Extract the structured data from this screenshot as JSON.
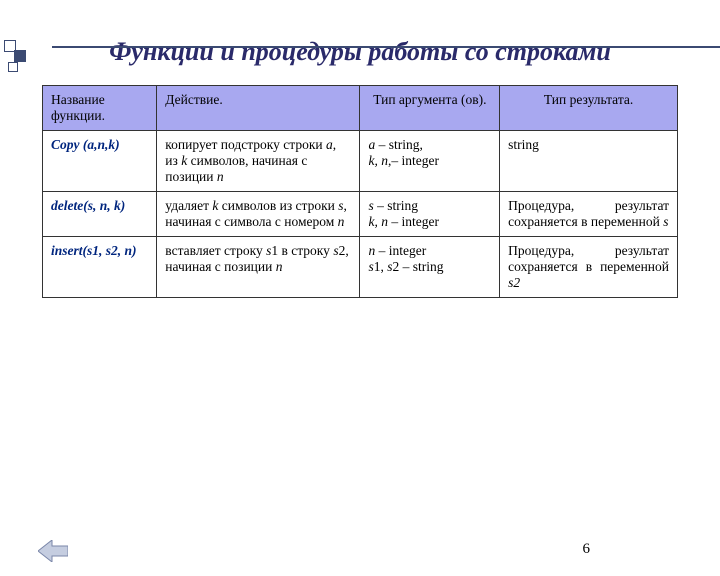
{
  "accent_color": "#3b4a72",
  "title_color": "#2a2a6a",
  "header_bg": "#a8a8f0",
  "func_color": "#00257e",
  "title": "Функции и процедуры работы со строками",
  "table": {
    "headers": {
      "name": "Название функции.",
      "action": "Действие.",
      "args": "Тип аргумента (ов).",
      "result": "Тип результата."
    },
    "rows": [
      {
        "name_html": "Copy (a,n,k)",
        "action_html": "копирует подстроку строки <span class='it'>a</span>, из <span class='it'>k</span> символов, начиная с позиции <span class='it'>n</span>",
        "args_html": "<span class='it'>a</span> – string,<br><span class='it'>k, n</span>,– integer",
        "result_html": "string",
        "result_justify": false
      },
      {
        "name_html": "delete(s, n, k)",
        "action_html": "удаляет <span class='it'>k</span> символов из строки <span class='it'>s</span>, начиная с символа с номером <span class='it'>n</span>",
        "args_html": "<span class='it'>s</span> – string<br><span class='it'>k, n</span> – integer",
        "result_html": "Процедура, результат сохраняется в переменной <span class='it'>s</span>",
        "result_justify": true
      },
      {
        "name_html": "insert(s1, s2, n)",
        "action_html": "вставляет строку <span class='it'>s</span>1 в строку <span class='it'>s</span>2, начиная с позиции <span class='it'>n</span>",
        "args_html": "<span class='it'>n</span> – integer<br><span class='it'>s</span>1, <span class='it'>s</span>2 – string",
        "result_html": "Процедура, результат сохраняется в переменной <span class='it'>s2</span>",
        "result_justify": true
      }
    ]
  },
  "page_number": "6",
  "nav_arrow_color": "#b8c0d0"
}
